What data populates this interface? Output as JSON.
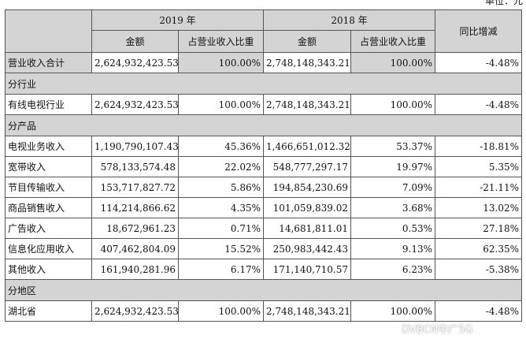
{
  "unit": "单位：元",
  "header": {
    "y2019": "2019 年",
    "y2018": "2018 年",
    "amount": "金额",
    "ratio": "占营业收入比重",
    "yoy": "同比增减"
  },
  "total": {
    "label": "营业收入合计",
    "a2019": "2,624,932,423.53",
    "r2019": "100.00%",
    "a2018": "2,748,148,343.21",
    "r2018": "100.00%",
    "yoy": "-4.48%"
  },
  "sections": [
    {
      "title": "分行业",
      "rows": [
        {
          "label": "有线电视行业",
          "a2019": "2,624,932,423.53",
          "r2019": "100.00%",
          "a2018": "2,748,148,343.21",
          "r2018": "100.00%",
          "yoy": "-4.48%"
        }
      ]
    },
    {
      "title": "分产品",
      "rows": [
        {
          "label": "电视业务收入",
          "a2019": "1,190,790,107.43",
          "r2019": "45.36%",
          "a2018": "1,466,651,012.32",
          "r2018": "53.37%",
          "yoy": "-18.81%"
        },
        {
          "label": "宽带收入",
          "a2019": "578,133,574.48",
          "r2019": "22.02%",
          "a2018": "548,777,297.17",
          "r2018": "19.97%",
          "yoy": "5.35%"
        },
        {
          "label": "节目传输收入",
          "a2019": "153,717,827.72",
          "r2019": "5.86%",
          "a2018": "194,854,230.69",
          "r2018": "7.09%",
          "yoy": "-21.11%"
        },
        {
          "label": "商品销售收入",
          "a2019": "114,214,866.62",
          "r2019": "4.35%",
          "a2018": "101,059,839.02",
          "r2018": "3.68%",
          "yoy": "13.02%"
        },
        {
          "label": "广告收入",
          "a2019": "18,672,961.23",
          "r2019": "0.71%",
          "a2018": "14,681,811.01",
          "r2018": "0.53%",
          "yoy": "27.18%"
        },
        {
          "label": "信息化应用收入",
          "a2019": "407,462,804.09",
          "r2019": "15.52%",
          "a2018": "250,983,442.43",
          "r2018": "9.13%",
          "yoy": "62.35%"
        },
        {
          "label": "其他收入",
          "a2019": "161,940,281.96",
          "r2019": "6.17%",
          "a2018": "171,140,710.57",
          "r2018": "6.23%",
          "yoy": "-5.38%"
        }
      ]
    },
    {
      "title": "分地区",
      "rows": [
        {
          "label": "湖北省",
          "a2019": "2,624,932,423.53",
          "r2019": "100.00%",
          "a2018": "2,748,148,343.21",
          "r2018": "100.00%",
          "yoy": "-4.48%"
        }
      ]
    }
  ],
  "watermark": "DVBCN中广5G"
}
